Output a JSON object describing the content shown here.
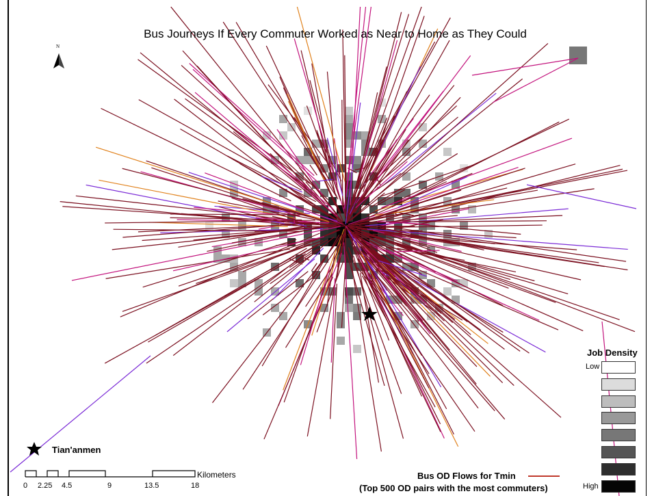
{
  "title": "Bus Journeys If Every Commuter Worked as Near to Home as They Could",
  "north_arrow": {
    "label": "N",
    "icon": "north-arrow-icon"
  },
  "legend": {
    "title": "Job Density",
    "low_label": "Low",
    "high_label": "High",
    "classes": [
      "#ffffff",
      "#dcdcdc",
      "#bdbdbd",
      "#999999",
      "#777777",
      "#555555",
      "#2e2e2e",
      "#050505"
    ]
  },
  "landmark": {
    "label": "Tian'anmen",
    "icon": "star-icon"
  },
  "scale_bar": {
    "unit_label": "Kilometers",
    "ticks": [
      "0",
      "2.25",
      "4.5",
      "9",
      "13.5",
      "18"
    ]
  },
  "flows_legend": {
    "title": "Bus OD Flows for Tmin",
    "subtitle": "(Top 500 OD pairs with the most commuters)",
    "line_color": "#c0392b"
  },
  "colors": {
    "flow_dark": "#7a0e1e",
    "flow_magenta": "#c2127c",
    "flow_purple": "#7a2ad6",
    "flow_orange": "#e0801a"
  }
}
